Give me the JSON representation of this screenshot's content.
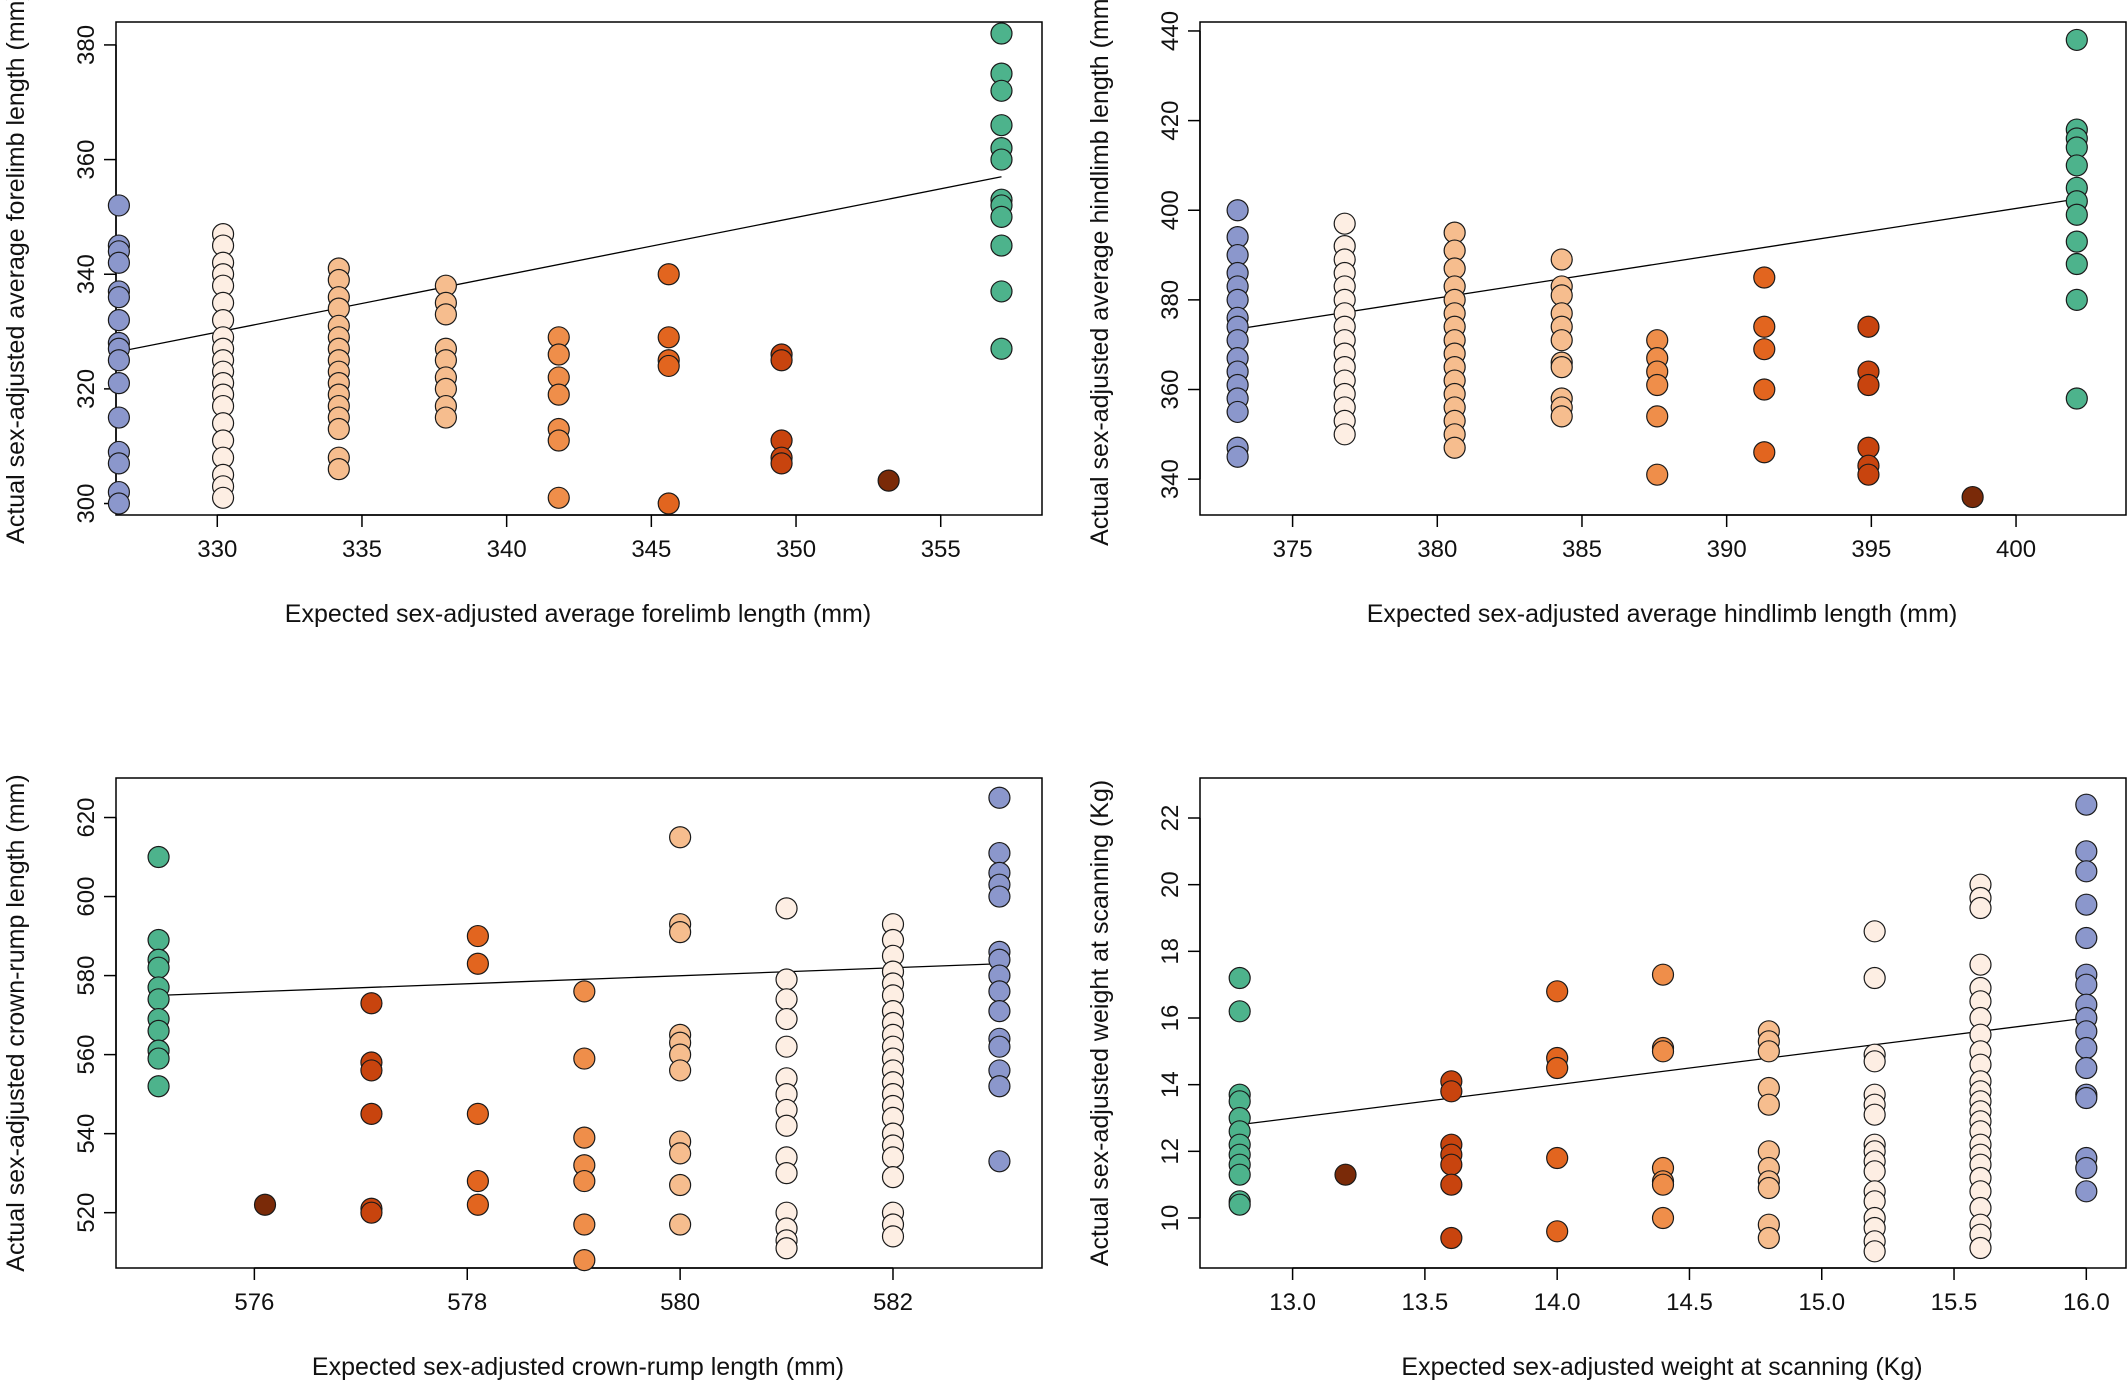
{
  "colors": {
    "blue": "#8B97CC",
    "green": "#4DB38C",
    "pale": "#FDEEE3",
    "light_orange": "#F6BD8E",
    "orange": "#EF8E4A",
    "dark_orange": "#E2651F",
    "red_orange": "#C8440E",
    "brown": "#7A2A08"
  },
  "chart_data": [
    {
      "type": "scatter",
      "title": "",
      "xlabel": "Expected sex-adjusted average forelimb length (mm)",
      "ylabel": "Actual sex-adjusted average forelimb length (mm)",
      "xlim": [
        326.5,
        358.5
      ],
      "ylim": [
        298,
        384
      ],
      "xticks": [
        330,
        335,
        340,
        345,
        350,
        355
      ],
      "yticks": [
        300,
        320,
        340,
        360,
        380
      ],
      "fit_line": {
        "x": [
          326.6,
          357.1
        ],
        "y": [
          326.5,
          357.0
        ]
      },
      "groups": [
        {
          "x": 326.6,
          "color": "blue",
          "y": [
            352,
            345,
            344,
            342,
            337,
            336,
            332,
            328,
            327,
            325,
            321,
            315,
            309,
            307,
            302,
            300
          ]
        },
        {
          "x": 330.2,
          "color": "pale",
          "y": [
            347,
            345,
            342,
            340,
            338,
            335,
            332,
            329,
            327,
            325,
            323,
            321,
            319,
            317,
            314,
            311,
            308,
            305,
            303,
            301
          ]
        },
        {
          "x": 334.2,
          "color": "light_orange",
          "y": [
            341,
            339,
            336,
            334,
            331,
            329,
            327,
            325,
            323,
            321,
            319,
            317,
            315,
            313,
            308,
            306
          ]
        },
        {
          "x": 337.9,
          "color": "light_orange",
          "y": [
            338,
            335,
            333,
            327,
            325,
            322,
            320,
            317,
            315
          ]
        },
        {
          "x": 341.8,
          "color": "orange",
          "y": [
            329,
            326,
            322,
            319,
            313,
            311,
            301
          ]
        },
        {
          "x": 345.6,
          "color": "dark_orange",
          "y": [
            340,
            329,
            325,
            324,
            300
          ]
        },
        {
          "x": 349.5,
          "color": "red_orange",
          "y": [
            326,
            325,
            311,
            308,
            307
          ]
        },
        {
          "x": 353.2,
          "color": "brown",
          "y": [
            304
          ]
        },
        {
          "x": 357.1,
          "color": "green",
          "y": [
            382,
            375,
            372,
            366,
            362,
            360,
            353,
            352,
            350,
            345,
            337,
            327
          ]
        }
      ]
    },
    {
      "type": "scatter",
      "title": "",
      "xlabel": "Expected sex-adjusted average hindlimb length (mm)",
      "ylabel": "Actual sex-adjusted average hindlimb length (mm)",
      "xlim": [
        371.8,
        403.8
      ],
      "ylim": [
        332,
        442
      ],
      "xticks": [
        375,
        380,
        385,
        390,
        395,
        400
      ],
      "yticks": [
        340,
        360,
        380,
        400,
        420,
        440
      ],
      "fit_line": {
        "x": [
          373.1,
          402.1
        ],
        "y": [
          373.5,
          402.5
        ]
      },
      "groups": [
        {
          "x": 373.1,
          "color": "blue",
          "y": [
            400,
            394,
            390,
            386,
            383,
            380,
            376,
            374,
            371,
            367,
            364,
            361,
            358,
            355,
            347,
            345
          ]
        },
        {
          "x": 376.8,
          "color": "pale",
          "y": [
            397,
            392,
            389,
            386,
            383,
            380,
            377,
            374,
            371,
            368,
            365,
            362,
            359,
            356,
            353,
            350
          ]
        },
        {
          "x": 380.6,
          "color": "light_orange",
          "y": [
            395,
            391,
            387,
            383,
            380,
            377,
            374,
            371,
            368,
            365,
            362,
            359,
            356,
            353,
            350,
            347
          ]
        },
        {
          "x": 384.3,
          "color": "light_orange",
          "y": [
            389,
            383,
            381,
            377,
            374,
            371,
            366,
            365,
            358,
            356,
            354
          ]
        },
        {
          "x": 387.6,
          "color": "orange",
          "y": [
            371,
            367,
            364,
            361,
            354,
            341
          ]
        },
        {
          "x": 391.3,
          "color": "dark_orange",
          "y": [
            385,
            374,
            369,
            360,
            346
          ]
        },
        {
          "x": 394.9,
          "color": "red_orange",
          "y": [
            374,
            364,
            361,
            347,
            343,
            341
          ]
        },
        {
          "x": 398.5,
          "color": "brown",
          "y": [
            336
          ]
        },
        {
          "x": 402.1,
          "color": "green",
          "y": [
            438,
            418,
            416,
            414,
            410,
            405,
            402,
            399,
            393,
            388,
            380,
            358
          ]
        }
      ]
    },
    {
      "type": "scatter",
      "title": "",
      "xlabel": "Expected sex-adjusted crown-rump length (mm)",
      "ylabel": "Actual sex-adjusted crown-rump length (mm)",
      "xlim": [
        574.7,
        583.4
      ],
      "ylim": [
        506,
        630
      ],
      "xticks": [
        576,
        578,
        580,
        582
      ],
      "yticks": [
        520,
        540,
        560,
        580,
        600,
        620
      ],
      "fit_line": {
        "x": [
          575.1,
          583.0
        ],
        "y": [
          575.0,
          583.0
        ]
      },
      "groups": [
        {
          "x": 575.1,
          "color": "green",
          "y": [
            610,
            589,
            584,
            582,
            577,
            574,
            569,
            566,
            561,
            559,
            552
          ]
        },
        {
          "x": 576.1,
          "color": "brown",
          "y": [
            522
          ]
        },
        {
          "x": 577.1,
          "color": "red_orange",
          "y": [
            573,
            558,
            556,
            545,
            521,
            520
          ]
        },
        {
          "x": 578.1,
          "color": "dark_orange",
          "y": [
            590,
            583,
            545,
            528,
            522
          ]
        },
        {
          "x": 579.1,
          "color": "orange",
          "y": [
            576,
            559,
            539,
            532,
            528,
            517,
            508
          ]
        },
        {
          "x": 580.0,
          "color": "light_orange",
          "y": [
            615,
            593,
            591,
            565,
            563,
            560,
            556,
            538,
            535,
            527,
            517
          ]
        },
        {
          "x": 581.0,
          "color": "pale",
          "y": [
            597,
            579,
            574,
            569,
            562,
            554,
            550,
            546,
            542,
            534,
            530,
            520,
            516,
            513,
            511
          ]
        },
        {
          "x": 582.0,
          "color": "pale",
          "y": [
            593,
            589,
            585,
            581,
            578,
            575,
            571,
            568,
            565,
            562,
            559,
            556,
            553,
            550,
            547,
            544,
            540,
            537,
            534,
            529,
            520,
            517,
            514
          ]
        },
        {
          "x": 583.0,
          "color": "blue",
          "y": [
            625,
            611,
            606,
            603,
            600,
            586,
            584,
            580,
            576,
            571,
            564,
            562,
            556,
            552,
            533
          ]
        }
      ]
    },
    {
      "type": "scatter",
      "title": "",
      "xlabel": "Expected sex-adjusted weight at scanning (Kg)",
      "ylabel": "Actual sex-adjusted weight at scanning (Kg)",
      "xlim": [
        12.65,
        16.15
      ],
      "ylim": [
        8.5,
        23.2
      ],
      "xticks": [
        "13.0",
        "13.5",
        "14.0",
        "14.5",
        "15.0",
        "15.5",
        "16.0"
      ],
      "yticks": [
        10,
        12,
        14,
        16,
        18,
        20,
        22
      ],
      "fit_line": {
        "x": [
          12.8,
          16.0
        ],
        "y": [
          12.8,
          16.0
        ]
      },
      "groups": [
        {
          "x": 12.8,
          "color": "green",
          "y": [
            17.2,
            16.2,
            13.7,
            13.5,
            13.0,
            12.6,
            12.2,
            11.9,
            11.6,
            11.3,
            10.5,
            10.4
          ]
        },
        {
          "x": 13.2,
          "color": "brown",
          "y": [
            11.3
          ]
        },
        {
          "x": 13.6,
          "color": "red_orange",
          "y": [
            14.1,
            13.8,
            12.2,
            11.9,
            11.6,
            11.0,
            9.4
          ]
        },
        {
          "x": 14.0,
          "color": "dark_orange",
          "y": [
            16.8,
            14.8,
            14.5,
            11.8,
            9.6
          ]
        },
        {
          "x": 14.4,
          "color": "orange",
          "y": [
            17.3,
            15.1,
            15.0,
            11.5,
            11.1,
            11.0,
            10.0
          ]
        },
        {
          "x": 14.8,
          "color": "light_orange",
          "y": [
            15.6,
            15.3,
            15.0,
            13.9,
            13.4,
            12.0,
            11.5,
            11.1,
            10.9,
            9.8,
            9.4
          ]
        },
        {
          "x": 15.2,
          "color": "pale",
          "y": [
            18.6,
            17.2,
            14.9,
            14.7,
            13.7,
            13.4,
            13.1,
            12.2,
            12.0,
            11.7,
            11.4,
            10.8,
            10.5,
            10.0,
            9.7,
            9.3,
            9.0
          ]
        },
        {
          "x": 15.6,
          "color": "pale",
          "y": [
            20.0,
            19.6,
            19.3,
            17.6,
            16.9,
            16.5,
            16.0,
            15.5,
            15.0,
            14.6,
            14.1,
            13.8,
            13.5,
            13.2,
            12.9,
            12.6,
            12.2,
            11.9,
            11.6,
            11.2,
            10.8,
            10.3,
            9.8,
            9.5,
            9.1
          ]
        },
        {
          "x": 16.0,
          "color": "blue",
          "y": [
            22.4,
            21.0,
            20.4,
            19.4,
            18.4,
            17.3,
            17.0,
            16.4,
            16.0,
            15.6,
            15.1,
            14.5,
            13.7,
            13.6,
            11.8,
            11.5,
            10.8
          ]
        }
      ]
    }
  ]
}
